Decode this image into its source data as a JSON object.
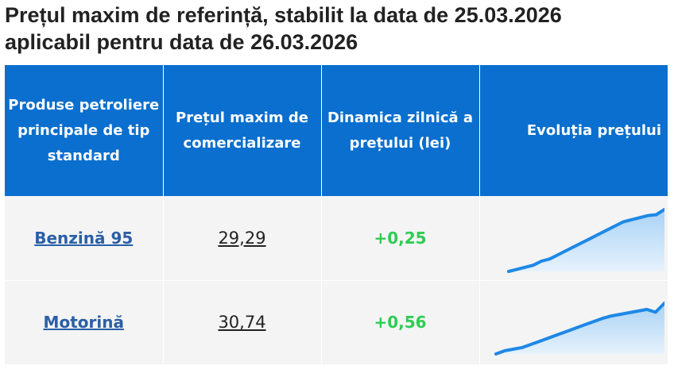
{
  "title": {
    "line1": "Prețul maxim de referință, stabilit la data de 25.03.2026",
    "line2": "aplicabil pentru data de 26.03.2026"
  },
  "table": {
    "headers": {
      "product": "Produse petroliere principale de tip standard",
      "price": "Prețul maxim de comercializare",
      "dynamic": "Dinamica zilnică a prețului (lei)",
      "evolution": "Evoluția prețului"
    },
    "rows": [
      {
        "product": "Benzină 95",
        "price": "29,29",
        "dynamic": "+0,25",
        "trend": [
          26.3,
          26.4,
          26.5,
          26.6,
          26.8,
          26.9,
          27.1,
          27.3,
          27.5,
          27.7,
          27.9,
          28.1,
          28.3,
          28.5,
          28.7,
          28.8,
          28.9,
          29.0,
          29.04,
          29.29
        ]
      },
      {
        "product": "Motorină",
        "price": "30,74",
        "dynamic": "+0,56",
        "trend": [
          27.6,
          27.8,
          27.9,
          28.0,
          28.2,
          28.4,
          28.6,
          28.8,
          29.0,
          29.2,
          29.4,
          29.6,
          29.8,
          29.95,
          30.05,
          30.15,
          30.25,
          30.35,
          30.18,
          30.74
        ]
      }
    ]
  },
  "colors": {
    "header_bg": "#0a6fce",
    "link": "#2a5fa6",
    "positive": "#2ecc52",
    "sparkline": "#1e88e5",
    "sparkline_fill": "#a9d2f5"
  }
}
